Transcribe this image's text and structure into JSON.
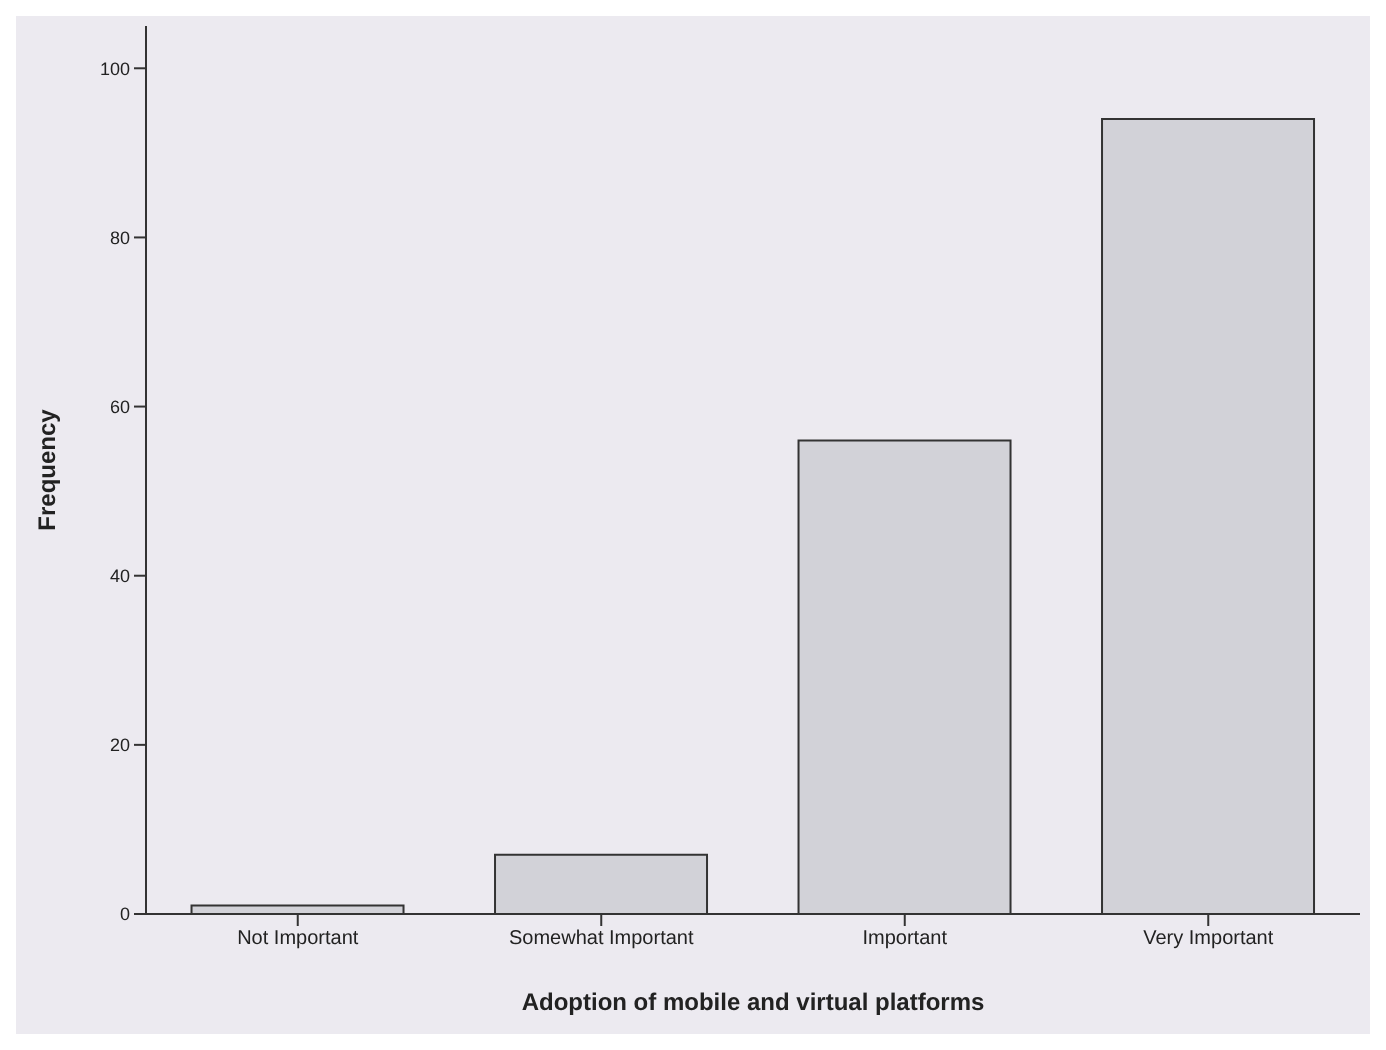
{
  "chart_data": {
    "type": "bar",
    "xlabel": "Adoption of mobile and virtual platforms",
    "ylabel": "Frequency",
    "categories": [
      "Not Important",
      "Somewhat Important",
      "Important",
      "Very Important"
    ],
    "values": [
      1,
      7,
      56,
      94
    ],
    "color": "#d2d2d8",
    "ylim": [
      0,
      105
    ],
    "yticks": [
      0,
      20,
      40,
      60,
      80,
      100
    ],
    "grid": false,
    "legend": false
  }
}
